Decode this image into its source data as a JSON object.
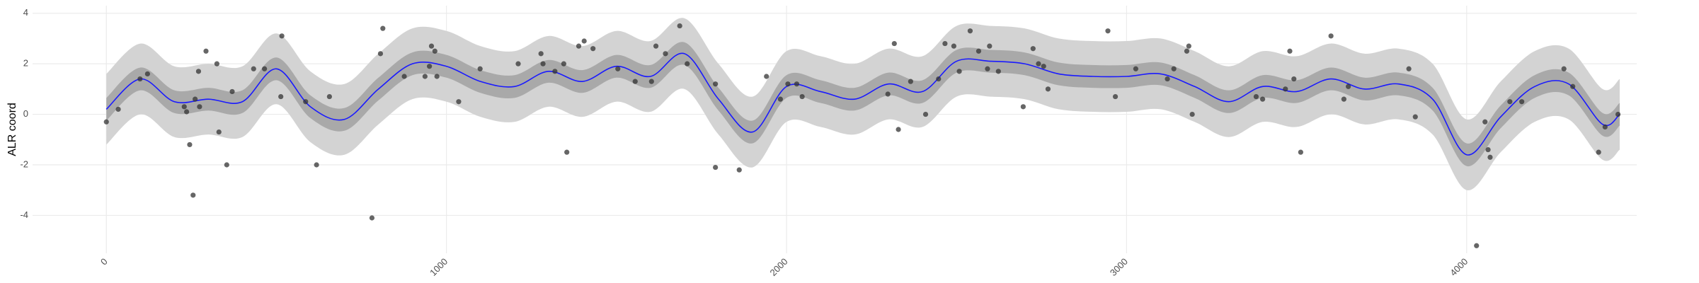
{
  "chart_data": {
    "type": "line",
    "y_label": "ALR coord",
    "xlim": [
      -217,
      4500
    ],
    "ylim": [
      -5.5,
      4.3
    ],
    "xticks": [
      0,
      1000,
      2000,
      3000,
      4000
    ],
    "yticks": [
      -4,
      -2,
      0,
      2,
      4
    ],
    "grid": true,
    "x": [
      0,
      100,
      200,
      300,
      400,
      500,
      600,
      700,
      800,
      900,
      1000,
      1100,
      1200,
      1300,
      1400,
      1500,
      1600,
      1700,
      1800,
      1900,
      2000,
      2100,
      2200,
      2300,
      2400,
      2500,
      2600,
      2700,
      2800,
      2900,
      3000,
      3100,
      3200,
      3300,
      3400,
      3500,
      3600,
      3700,
      3800,
      3900,
      4000,
      4100,
      4200,
      4300,
      4400,
      4450
    ],
    "bands": [
      {
        "color": "#d3d3d3",
        "upper": [
          1.6,
          2.8,
          1.9,
          2.0,
          1.9,
          3.2,
          1.7,
          1.2,
          2.4,
          3.4,
          3.3,
          2.7,
          2.5,
          3.1,
          2.7,
          3.3,
          2.9,
          3.8,
          2.0,
          0.7,
          2.5,
          2.3,
          2.0,
          2.6,
          2.3,
          3.5,
          3.5,
          3.4,
          3.0,
          2.9,
          2.9,
          3.0,
          2.5,
          1.9,
          2.5,
          2.3,
          2.8,
          2.4,
          2.6,
          2.0,
          -0.2,
          1.3,
          2.5,
          2.6,
          1.0,
          1.4
        ],
        "lower": [
          -1.2,
          0.0,
          -0.9,
          -0.8,
          -0.9,
          0.4,
          -1.1,
          -1.6,
          -0.4,
          0.6,
          0.5,
          -0.1,
          -0.3,
          0.3,
          -0.1,
          0.5,
          0.1,
          1.0,
          -0.8,
          -2.1,
          -0.3,
          -0.5,
          -0.8,
          -0.2,
          -0.5,
          0.7,
          0.7,
          0.6,
          0.2,
          0.1,
          0.1,
          0.2,
          -0.3,
          -0.9,
          -0.3,
          -0.5,
          0.0,
          -0.4,
          -0.2,
          -0.8,
          -3.0,
          -1.5,
          -0.3,
          -0.2,
          -1.8,
          -1.4
        ]
      },
      {
        "color": "#a9a9a9",
        "upper": [
          0.65,
          1.85,
          0.95,
          1.05,
          0.95,
          2.25,
          0.75,
          0.25,
          1.45,
          2.45,
          2.35,
          1.75,
          1.55,
          2.15,
          1.75,
          2.35,
          1.95,
          2.85,
          1.05,
          -0.25,
          1.55,
          1.35,
          1.05,
          1.65,
          1.35,
          2.55,
          2.55,
          2.45,
          2.05,
          1.95,
          1.95,
          2.05,
          1.55,
          0.95,
          1.55,
          1.35,
          1.85,
          1.45,
          1.65,
          1.05,
          -1.15,
          0.35,
          1.55,
          1.65,
          0.05,
          0.45
        ],
        "lower": [
          -0.25,
          0.95,
          0.05,
          0.15,
          0.05,
          1.35,
          -0.15,
          -0.65,
          0.55,
          1.55,
          1.45,
          0.85,
          0.65,
          1.25,
          0.85,
          1.45,
          1.05,
          1.95,
          0.15,
          -1.15,
          0.65,
          0.45,
          0.15,
          0.75,
          0.45,
          1.65,
          1.65,
          1.55,
          1.15,
          1.05,
          1.05,
          1.15,
          0.65,
          0.05,
          0.65,
          0.45,
          0.95,
          0.55,
          0.75,
          0.15,
          -2.05,
          -0.55,
          0.65,
          0.75,
          -0.85,
          -0.45
        ]
      }
    ],
    "line": {
      "color": "#1a1aff",
      "values": [
        0.2,
        1.4,
        0.5,
        0.6,
        0.5,
        1.8,
        0.3,
        -0.2,
        1.0,
        2.0,
        1.9,
        1.3,
        1.1,
        1.7,
        1.3,
        1.9,
        1.5,
        2.4,
        0.6,
        -0.7,
        1.1,
        0.9,
        0.6,
        1.2,
        0.9,
        2.1,
        2.1,
        2.0,
        1.6,
        1.5,
        1.5,
        1.6,
        1.1,
        0.5,
        1.1,
        0.9,
        1.4,
        1.0,
        1.2,
        0.6,
        -1.6,
        -0.1,
        1.1,
        1.2,
        -0.4,
        0.0
      ]
    },
    "points": {
      "color": "#333333",
      "x": [
        0,
        35,
        99,
        121,
        229,
        236,
        245,
        255,
        261,
        271,
        274,
        293,
        325,
        331,
        354,
        370,
        433,
        465,
        513,
        516,
        586,
        618,
        656,
        781,
        806,
        813,
        876,
        937,
        956,
        966,
        950,
        972,
        1036,
        1099,
        1211,
        1278,
        1284,
        1319,
        1345,
        1354,
        1389,
        1405,
        1431,
        1504,
        1555,
        1603,
        1616,
        1644,
        1686,
        1708,
        1791,
        1791,
        1861,
        1941,
        1982,
        2004,
        2030,
        2046,
        2298,
        2317,
        2329,
        2365,
        2409,
        2447,
        2466,
        2492,
        2508,
        2540,
        2565,
        2591,
        2597,
        2623,
        2696,
        2725,
        2741,
        2756,
        2769,
        2945,
        2967,
        3027,
        3120,
        3139,
        3177,
        3183,
        3193,
        3381,
        3400,
        3467,
        3480,
        3492,
        3512,
        3601,
        3639,
        3652,
        3830,
        3849,
        4029,
        4054,
        4063,
        4069,
        4127,
        4162,
        4286,
        4312,
        4388,
        4407,
        4445
      ],
      "y": [
        -0.3,
        0.2,
        1.4,
        1.6,
        0.3,
        0.1,
        -1.2,
        -3.2,
        0.6,
        1.7,
        0.3,
        2.5,
        2.0,
        -0.7,
        -2.0,
        0.9,
        1.8,
        1.8,
        0.7,
        3.1,
        0.5,
        -2.0,
        0.7,
        -4.1,
        2.4,
        3.4,
        1.5,
        1.5,
        2.7,
        2.5,
        1.9,
        1.5,
        0.5,
        1.8,
        2.0,
        2.4,
        2.0,
        1.7,
        2.0,
        -1.5,
        2.7,
        2.9,
        2.6,
        1.8,
        1.3,
        1.3,
        2.7,
        2.4,
        3.5,
        2.0,
        1.2,
        -2.1,
        -2.2,
        1.5,
        0.6,
        1.2,
        1.2,
        0.7,
        0.8,
        2.8,
        -0.6,
        1.3,
        0.0,
        1.4,
        2.8,
        2.7,
        1.7,
        3.3,
        2.5,
        1.8,
        2.7,
        1.7,
        0.3,
        2.6,
        2.0,
        1.9,
        1.0,
        3.3,
        0.7,
        1.8,
        1.4,
        1.8,
        2.5,
        2.7,
        0.0,
        0.7,
        0.6,
        1.0,
        2.5,
        1.4,
        -1.5,
        3.1,
        0.6,
        1.1,
        1.8,
        -0.1,
        -5.2,
        -0.3,
        -1.4,
        -1.7,
        0.5,
        0.5,
        1.8,
        1.1,
        -1.5,
        -0.5,
        0.0
      ]
    }
  }
}
